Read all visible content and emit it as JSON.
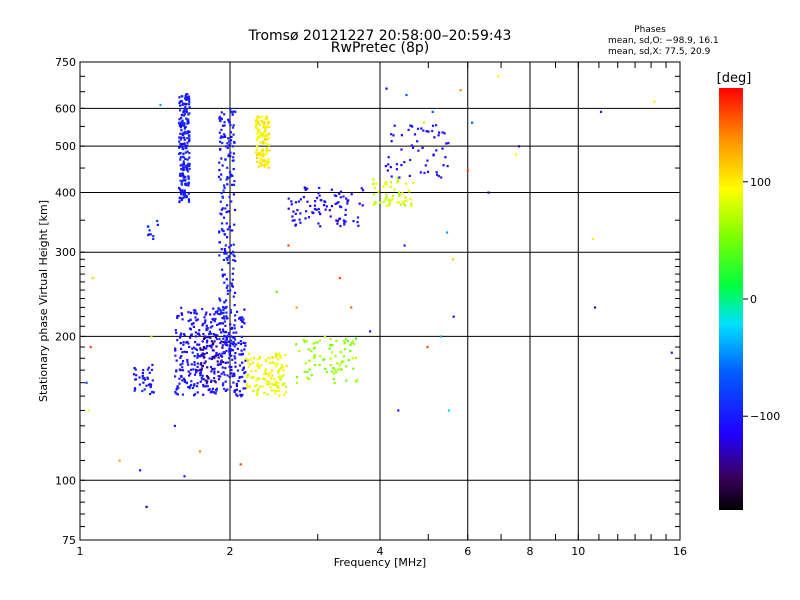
{
  "chart_data": {
    "type": "scatter",
    "title": "Tromsø 20121227 20:58:00–20:59:43",
    "subtitle": "RwPretec (8p)",
    "xlabel": "Frequency [MHz]",
    "ylabel": "Stationary phase Virtual Height [km]",
    "x_scale": "log",
    "y_scale": "log",
    "xlim": [
      1,
      16
    ],
    "ylim": [
      75,
      750
    ],
    "x_ticks": [
      1,
      2,
      4,
      6,
      8,
      10,
      16
    ],
    "x_tick_labels": [
      "1",
      "2",
      "4",
      "6",
      "8",
      "10",
      "16"
    ],
    "y_ticks": [
      75,
      100,
      200,
      300,
      400,
      500,
      600,
      750
    ],
    "y_tick_labels": [
      "75",
      "100",
      "200",
      "300",
      "400",
      "500",
      "600",
      "750"
    ],
    "grid": true,
    "phases": {
      "heading": "Phases",
      "o_line": "mean, sd,O: −98.9, 16.1",
      "x_line": "mean, sd,X:  77.5, 20.9"
    },
    "colorbar": {
      "label": "[deg]",
      "range": [
        -180,
        180
      ],
      "ticks": [
        100,
        0,
        -100
      ],
      "tick_labels": [
        "100",
        "0",
        "−100"
      ]
    },
    "clusters": [
      {
        "x": [
          1.58,
          1.66
        ],
        "y": [
          380,
          650
        ],
        "phase": -100,
        "n": 220
      },
      {
        "x": [
          1.9,
          2.05
        ],
        "y": [
          190,
          600
        ],
        "phase": -100,
        "n": 200
      },
      {
        "x": [
          1.55,
          2.15
        ],
        "y": [
          150,
          230
        ],
        "phase": -105,
        "n": 400
      },
      {
        "x": [
          1.72,
          1.95
        ],
        "y": [
          160,
          200
        ],
        "phase": -140,
        "n": 40
      },
      {
        "x": [
          1.28,
          1.42
        ],
        "y": [
          150,
          175
        ],
        "phase": -100,
        "n": 40
      },
      {
        "x": [
          2.25,
          2.4
        ],
        "y": [
          450,
          580
        ],
        "phase": 100,
        "n": 120
      },
      {
        "x": [
          2.15,
          2.6
        ],
        "y": [
          150,
          185
        ],
        "phase": 90,
        "n": 120
      },
      {
        "x": [
          2.7,
          3.6
        ],
        "y": [
          160,
          200
        ],
        "phase": 60,
        "n": 80
      },
      {
        "x": [
          2.6,
          3.7
        ],
        "y": [
          340,
          410
        ],
        "phase": -110,
        "n": 90
      },
      {
        "x": [
          3.8,
          4.7
        ],
        "y": [
          375,
          430
        ],
        "phase": 80,
        "n": 60
      },
      {
        "x": [
          4.1,
          5.5
        ],
        "y": [
          430,
          560
        ],
        "phase": -110,
        "n": 60
      },
      {
        "x": [
          1.3,
          1.45
        ],
        "y": [
          320,
          350
        ],
        "phase": -90,
        "n": 10
      }
    ],
    "points": [
      {
        "x": 1.03,
        "y": 160,
        "phase": -80
      },
      {
        "x": 1.05,
        "y": 190,
        "phase": 160
      },
      {
        "x": 1.06,
        "y": 265,
        "phase": 110
      },
      {
        "x": 1.04,
        "y": 140,
        "phase": 90
      },
      {
        "x": 1.2,
        "y": 110,
        "phase": 130
      },
      {
        "x": 1.32,
        "y": 105,
        "phase": -100
      },
      {
        "x": 1.36,
        "y": 88,
        "phase": -140
      },
      {
        "x": 1.45,
        "y": 610,
        "phase": -40
      },
      {
        "x": 1.39,
        "y": 200,
        "phase": 60
      },
      {
        "x": 1.55,
        "y": 130,
        "phase": -100
      },
      {
        "x": 1.62,
        "y": 102,
        "phase": -100
      },
      {
        "x": 1.74,
        "y": 115,
        "phase": 140
      },
      {
        "x": 2.1,
        "y": 108,
        "phase": 160
      },
      {
        "x": 2.48,
        "y": 248,
        "phase": 40
      },
      {
        "x": 2.62,
        "y": 310,
        "phase": 160
      },
      {
        "x": 2.72,
        "y": 230,
        "phase": 130
      },
      {
        "x": 3.32,
        "y": 265,
        "phase": 160
      },
      {
        "x": 3.58,
        "y": 198,
        "phase": 20
      },
      {
        "x": 3.5,
        "y": 230,
        "phase": 150
      },
      {
        "x": 3.82,
        "y": 205,
        "phase": -100
      },
      {
        "x": 4.12,
        "y": 660,
        "phase": -120
      },
      {
        "x": 4.35,
        "y": 140,
        "phase": -100
      },
      {
        "x": 4.52,
        "y": 640,
        "phase": -60
      },
      {
        "x": 4.48,
        "y": 310,
        "phase": -100
      },
      {
        "x": 4.98,
        "y": 190,
        "phase": 160
      },
      {
        "x": 5.1,
        "y": 590,
        "phase": -60
      },
      {
        "x": 5.3,
        "y": 200,
        "phase": -40
      },
      {
        "x": 5.5,
        "y": 140,
        "phase": -20
      },
      {
        "x": 5.62,
        "y": 220,
        "phase": -100
      },
      {
        "x": 5.6,
        "y": 290,
        "phase": 110
      },
      {
        "x": 5.45,
        "y": 330,
        "phase": -40
      },
      {
        "x": 5.8,
        "y": 655,
        "phase": 140
      },
      {
        "x": 6.0,
        "y": 445,
        "phase": 160
      },
      {
        "x": 6.12,
        "y": 560,
        "phase": -60
      },
      {
        "x": 6.6,
        "y": 400,
        "phase": -140
      },
      {
        "x": 7.5,
        "y": 480,
        "phase": 90
      },
      {
        "x": 7.6,
        "y": 500,
        "phase": -140
      },
      {
        "x": 4.9,
        "y": 560,
        "phase": 110
      },
      {
        "x": 6.9,
        "y": 700,
        "phase": 100
      },
      {
        "x": 10.7,
        "y": 320,
        "phase": 100
      },
      {
        "x": 11.1,
        "y": 590,
        "phase": -100
      },
      {
        "x": 10.8,
        "y": 230,
        "phase": -120
      },
      {
        "x": 15.4,
        "y": 185,
        "phase": -100
      },
      {
        "x": 14.2,
        "y": 620,
        "phase": 100
      }
    ]
  }
}
